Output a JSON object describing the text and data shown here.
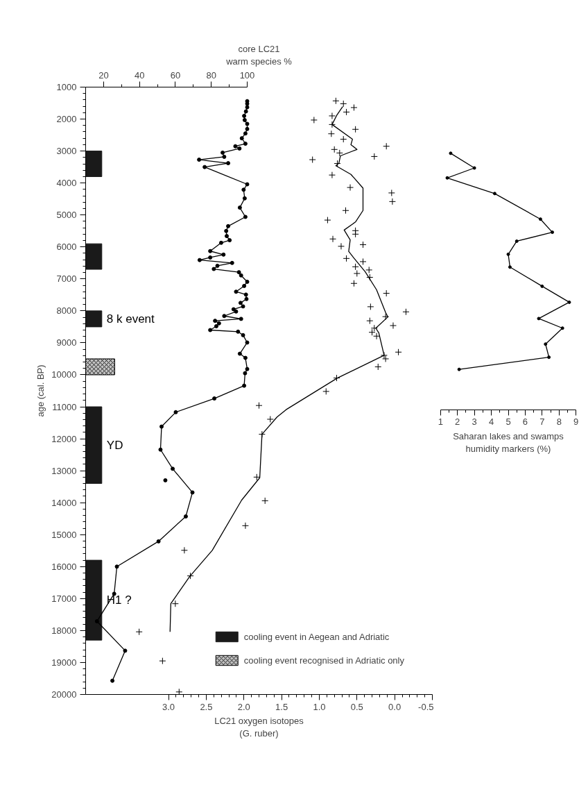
{
  "chart_data": [
    {
      "type": "line",
      "orientation": "horizontal",
      "ylabel": "age (cal. BP)",
      "ylim": [
        20000,
        1000
      ],
      "yticks": [
        1000,
        2000,
        3000,
        4000,
        5000,
        6000,
        7000,
        8000,
        9000,
        10000,
        11000,
        12000,
        13000,
        14000,
        15000,
        16000,
        17000,
        18000,
        19000,
        20000
      ],
      "x2label": "core LC21\nwarm species %",
      "x2lim": [
        10,
        100
      ],
      "x2ticks": [
        20,
        40,
        60,
        80,
        100
      ],
      "xlabel": "LC21 oxygen isotopes\n(G. ruber)",
      "xlim": [
        4.1,
        -0.5
      ],
      "xticks": [
        {
          "value": 3,
          "label": "3.0"
        },
        2.5,
        {
          "value": 2,
          "label": "2.0"
        },
        1.5,
        {
          "value": 1,
          "label": "1.0"
        },
        0.5,
        {
          "value": 0,
          "label": "0.0"
        },
        -0.5
      ],
      "legend": "bottom right",
      "series": [
        {
          "axis": "x2",
          "marker": "circle",
          "color": "#000000",
          "x": [
            1440,
            1520,
            1630,
            1760,
            1900,
            2030,
            2150,
            2310,
            2450,
            2600,
            2770,
            2850,
            2920,
            3050,
            3180,
            3270,
            3380,
            3500,
            4040,
            4210,
            4480,
            4770,
            5060,
            5350,
            5500,
            5660,
            5790,
            5870,
            6130,
            6240,
            6330,
            6410,
            6500,
            6590,
            6690,
            6790,
            6890,
            7090,
            7220,
            7400,
            7490,
            7630,
            7750,
            7860,
            7950,
            8020,
            8160,
            8250,
            8310,
            8390,
            8480,
            8600,
            8650,
            8760,
            8990,
            9340,
            9470,
            9820,
            9950,
            10340,
            10740,
            11170,
            11620,
            12340,
            12940,
            13680,
            14430,
            15210,
            16000,
            16850,
            17710,
            18630,
            19570
          ],
          "values": [
            100,
            100,
            100,
            99.3,
            98.3,
            98.6,
            100,
            100,
            99,
            97,
            99,
            93.4,
            95.7,
            86.3,
            87.2,
            73.2,
            89.4,
            76.3,
            100,
            98,
            98.6,
            95.9,
            99,
            89.4,
            88.3,
            88.6,
            90.2,
            85.5,
            79.4,
            86.8,
            79.4,
            73.5,
            91.6,
            83.4,
            81.4,
            95.4,
            96.6,
            100,
            98.3,
            93.8,
            99.3,
            99.6,
            96.3,
            97.7,
            92.4,
            93.8,
            87.2,
            96.6,
            82.1,
            84.3,
            82.8,
            79.4,
            94.9,
            97.7,
            100,
            95.9,
            99,
            100,
            98.8,
            98.3,
            81.7,
            60.2,
            52.3,
            51.7,
            58.5,
            69.5,
            65.8,
            50.6,
            27.4,
            25.9,
            16.3,
            32,
            24.9
          ]
        },
        {
          "type": "scatter",
          "axis": "x2",
          "marker": "circle",
          "color": "#000000",
          "x": [
            13300
          ],
          "values": [
            54.4
          ]
        },
        {
          "type": "scatter",
          "marker": "cross",
          "color": "#000000",
          "x": [
            1430,
            1520,
            1640,
            1780,
            1900,
            2030,
            2170,
            2320,
            2460,
            2630,
            2850,
            2950,
            3060,
            3170,
            3270,
            3390,
            3750,
            4140,
            4310,
            4580,
            4860,
            5160,
            5490,
            5600,
            5750,
            5930,
            5980,
            6360,
            6460,
            6620,
            6720,
            6830,
            6950,
            7140,
            7450,
            7870,
            8030,
            8180,
            8310,
            8460,
            8540,
            8670,
            8790,
            9290,
            9390,
            9500,
            9750,
            10100,
            10520,
            10960,
            11390,
            11860,
            13200,
            13940,
            14720,
            15490,
            16290,
            17160,
            18040,
            18950,
            19920
          ],
          "values": [
            0.78,
            0.68,
            0.54,
            0.64,
            0.83,
            1.07,
            0.83,
            0.52,
            0.84,
            0.68,
            0.11,
            0.8,
            0.73,
            0.27,
            1.09,
            0.76,
            0.83,
            0.59,
            0.04,
            0.03,
            0.65,
            0.89,
            0.52,
            0.52,
            0.82,
            0.42,
            0.71,
            0.64,
            0.42,
            0.52,
            0.34,
            0.5,
            0.33,
            0.54,
            0.11,
            0.32,
            -0.15,
            0.12,
            0.33,
            0.02,
            0.27,
            0.3,
            0.24,
            -0.05,
            0.14,
            0.12,
            0.22,
            0.77,
            0.91,
            1.8,
            1.65,
            1.76,
            1.83,
            1.72,
            1.98,
            2.79,
            2.71,
            2.91,
            3.39,
            3.08,
            2.86
          ]
        },
        {
          "marker": "none",
          "color": "#000000",
          "x": [
            1610,
            1890,
            2170,
            2630,
            2800,
            2950,
            3150,
            3380,
            3460,
            3730,
            4160,
            4860,
            5220,
            5470,
            5780,
            6140,
            6350,
            6780,
            7340,
            8050,
            8190,
            8540,
            8690,
            9390,
            10100,
            11090,
            11320,
            11860,
            13220,
            13920,
            15490,
            16310,
            17160,
            18040
          ],
          "values": [
            0.69,
            0.77,
            0.83,
            0.56,
            0.58,
            0.5,
            0.72,
            0.74,
            0.78,
            0.58,
            0.42,
            0.42,
            0.52,
            0.67,
            0.59,
            0.61,
            0.54,
            0.39,
            0.24,
            0.12,
            0.09,
            0.25,
            0.21,
            0.14,
            0.76,
            1.44,
            1.56,
            1.76,
            1.79,
            2.03,
            2.42,
            2.72,
            2.97,
            2.98
          ]
        }
      ],
      "bands": [
        {
          "axis": "y",
          "from": 8000,
          "to": 8500,
          "color": "#1a1a1a",
          "label": "cooling event in Aegean and Adriatic"
        },
        {
          "axis": "y",
          "from": 11000,
          "to": 13400,
          "color": "#1a1a1a"
        },
        {
          "axis": "y",
          "from": 15800,
          "to": 18300,
          "color": "#1a1a1a"
        },
        {
          "axis": "y",
          "from": 3000,
          "to": 3800,
          "color": "#1a1a1a"
        },
        {
          "axis": "y",
          "from": 5900,
          "to": 6700,
          "color": "#1a1a1a"
        },
        {
          "axis": "y",
          "from": 9500,
          "to": 10000,
          "color": "#c0c0c0",
          "label": "cooling event recognised in Adriatic only"
        }
      ],
      "annotations": [
        "8 k event",
        "YD",
        "H1 ?"
      ]
    },
    {
      "type": "line",
      "orientation": "horizontal",
      "tick_labels": "x",
      "ylim": [
        20000,
        1000
      ],
      "xlabel": "Saharan lakes and swamps\nhumidity markers (%)",
      "xlim": [
        1,
        9
      ],
      "xticks": [
        1,
        2,
        3,
        4,
        5,
        6,
        7,
        8,
        9
      ],
      "series": [
        {
          "marker": "circle",
          "color": "#000000",
          "x": [
            3070,
            3530,
            3840,
            4330,
            5130,
            5540,
            5820,
            6230,
            6630,
            7230,
            7730,
            8240,
            8540,
            9040,
            9450,
            9830
          ],
          "values": [
            1.6,
            3,
            1.4,
            4.2,
            6.9,
            7.6,
            5.5,
            5,
            5.1,
            7,
            8.6,
            6.8,
            8.2,
            7.2,
            7.4,
            2.1
          ]
        }
      ]
    }
  ]
}
